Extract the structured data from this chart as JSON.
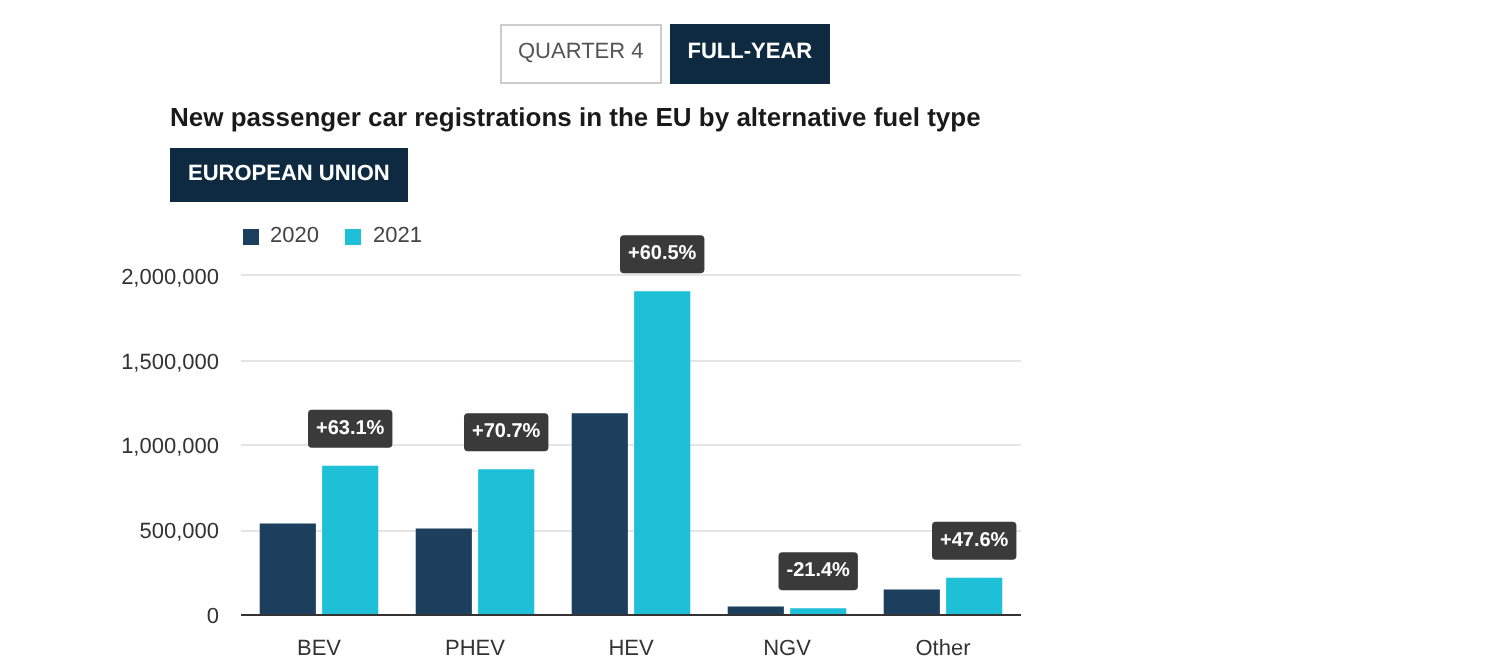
{
  "chart_data": {
    "type": "bar",
    "title": "New passenger car registrations in the EU by alternative fuel type",
    "categories": [
      "BEV",
      "PHEV",
      "HEV",
      "NGV",
      "Other"
    ],
    "series": [
      {
        "name": "2020",
        "color": "#1c3f5e",
        "values": [
          540000,
          510000,
          1190000,
          50000,
          150000
        ]
      },
      {
        "name": "2021",
        "color": "#1ec0d8",
        "values": [
          880000,
          860000,
          1910000,
          40000,
          220000
        ]
      }
    ],
    "ylim": [
      0,
      2300000
    ],
    "yticks": [
      0,
      {
        "value": 500000,
        "label": "500,000"
      },
      {
        "value": 1000000,
        "label": "1,000,000"
      },
      {
        "value": 1500000,
        "label": "1,500,000"
      },
      {
        "value": 2000000,
        "label": "2,000,000"
      }
    ],
    "grid": "y",
    "legend": "top left",
    "annotations": [
      "QUARTER 4",
      "FULL-YEAR",
      "EUROPEAN UNION",
      {
        "text": "+63.1%",
        "x": "BEV",
        "y": 880000
      },
      {
        "text": "+70.7%",
        "x": "PHEV",
        "y": 860000
      },
      {
        "text": "+60.5%",
        "x": "HEV",
        "y": 1910000
      },
      {
        "text": "-21.4%",
        "x": "NGV",
        "y": 40000
      },
      {
        "text": "+47.6%",
        "x": "Other",
        "y": 220000
      }
    ]
  }
}
